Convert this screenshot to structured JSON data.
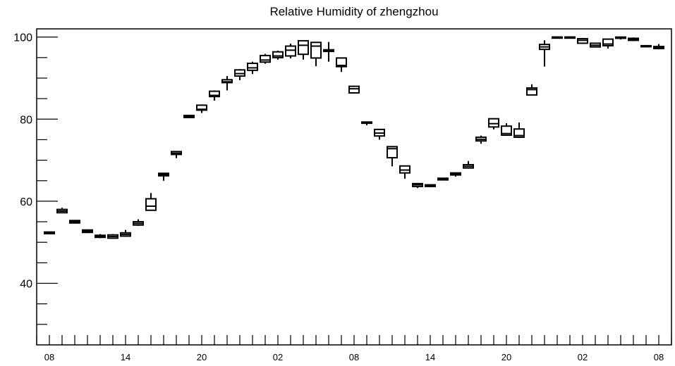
{
  "chart_data": {
    "type": "box",
    "title": "Relative Humidity of zhengzhou",
    "xlabel": "",
    "ylabel": "",
    "ylim": [
      25,
      102
    ],
    "yticks": [
      40,
      60,
      80,
      100
    ],
    "x_tick_labels": [
      "08",
      "14",
      "20",
      "02",
      "08",
      "14",
      "20",
      "02",
      "08"
    ],
    "x_tick_label_positions_hours": [
      0,
      6,
      12,
      18,
      24,
      30,
      36,
      42,
      48
    ],
    "x_range_hours": [
      -1,
      49
    ],
    "grid": false,
    "legend": "none",
    "boxes": [
      {
        "hour": 0,
        "q1": 52.1,
        "median": 52.3,
        "q3": 52.5,
        "wlo": 52.1,
        "whi": 52.5
      },
      {
        "hour": 1,
        "q1": 57.2,
        "median": 57.6,
        "q3": 58.0,
        "wlo": 57.1,
        "whi": 58.4
      },
      {
        "hour": 2,
        "q1": 54.7,
        "median": 55.0,
        "q3": 55.3,
        "wlo": 54.7,
        "whi": 55.3
      },
      {
        "hour": 3,
        "q1": 52.4,
        "median": 52.7,
        "q3": 53.0,
        "wlo": 52.4,
        "whi": 53.1
      },
      {
        "hour": 4,
        "q1": 51.2,
        "median": 51.5,
        "q3": 51.7,
        "wlo": 51.0,
        "whi": 52.0
      },
      {
        "hour": 5,
        "q1": 51.0,
        "median": 51.4,
        "q3": 51.8,
        "wlo": 50.9,
        "whi": 52.0
      },
      {
        "hour": 6,
        "q1": 51.5,
        "median": 51.9,
        "q3": 52.3,
        "wlo": 51.4,
        "whi": 53.0
      },
      {
        "hour": 7,
        "q1": 54.2,
        "median": 54.6,
        "q3": 55.0,
        "wlo": 54.0,
        "whi": 55.6
      },
      {
        "hour": 8,
        "q1": 57.8,
        "median": 58.8,
        "q3": 60.6,
        "wlo": 57.8,
        "whi": 62.0
      },
      {
        "hour": 9,
        "q1": 66.2,
        "median": 66.5,
        "q3": 66.8,
        "wlo": 65.0,
        "whi": 66.8
      },
      {
        "hour": 10,
        "q1": 71.4,
        "median": 71.7,
        "q3": 72.1,
        "wlo": 70.5,
        "whi": 72.2
      },
      {
        "hour": 11,
        "q1": 80.4,
        "median": 80.6,
        "q3": 80.9,
        "wlo": 80.4,
        "whi": 80.9
      },
      {
        "hour": 12,
        "q1": 82.2,
        "median": 82.4,
        "q3": 83.4,
        "wlo": 81.5,
        "whi": 83.6
      },
      {
        "hour": 13,
        "q1": 85.5,
        "median": 85.8,
        "q3": 86.8,
        "wlo": 84.5,
        "whi": 87.0
      },
      {
        "hour": 14,
        "q1": 88.9,
        "median": 89.1,
        "q3": 89.6,
        "wlo": 87.0,
        "whi": 90.5
      },
      {
        "hour": 15,
        "q1": 90.5,
        "median": 91.1,
        "q3": 92.0,
        "wlo": 89.5,
        "whi": 92.2
      },
      {
        "hour": 16,
        "q1": 91.9,
        "median": 92.5,
        "q3": 93.6,
        "wlo": 91.0,
        "whi": 94.0
      },
      {
        "hour": 17,
        "q1": 93.9,
        "median": 94.4,
        "q3": 95.5,
        "wlo": 93.5,
        "whi": 95.9
      },
      {
        "hour": 18,
        "q1": 95.0,
        "median": 95.4,
        "q3": 96.4,
        "wlo": 94.5,
        "whi": 96.7
      },
      {
        "hour": 19,
        "q1": 95.4,
        "median": 96.8,
        "q3": 97.8,
        "wlo": 94.8,
        "whi": 98.4
      },
      {
        "hour": 20,
        "q1": 95.8,
        "median": 98.0,
        "q3": 99.1,
        "wlo": 94.5,
        "whi": 99.2
      },
      {
        "hour": 21,
        "q1": 94.9,
        "median": 97.8,
        "q3": 98.7,
        "wlo": 92.9,
        "whi": 98.8
      },
      {
        "hour": 22,
        "q1": 96.5,
        "median": 96.7,
        "q3": 96.9,
        "wlo": 94.0,
        "whi": 98.8
      },
      {
        "hour": 23,
        "q1": 92.8,
        "median": 93.1,
        "q3": 94.9,
        "wlo": 91.5,
        "whi": 94.9
      },
      {
        "hour": 24,
        "q1": 86.4,
        "median": 87.4,
        "q3": 88.0,
        "wlo": 86.3,
        "whi": 88.2
      },
      {
        "hour": 25,
        "q1": 79.0,
        "median": 79.1,
        "q3": 79.3,
        "wlo": 78.5,
        "whi": 79.3
      },
      {
        "hour": 26,
        "q1": 75.9,
        "median": 76.6,
        "q3": 77.5,
        "wlo": 75.0,
        "whi": 77.6
      },
      {
        "hour": 27,
        "q1": 70.6,
        "median": 72.8,
        "q3": 73.3,
        "wlo": 68.5,
        "whi": 73.4
      },
      {
        "hour": 28,
        "q1": 66.9,
        "median": 67.6,
        "q3": 68.6,
        "wlo": 65.5,
        "whi": 68.7
      },
      {
        "hour": 29,
        "q1": 63.6,
        "median": 64.0,
        "q3": 64.3,
        "wlo": 63.2,
        "whi": 64.4
      },
      {
        "hour": 30,
        "q1": 63.6,
        "median": 63.8,
        "q3": 64.0,
        "wlo": 63.4,
        "whi": 64.0
      },
      {
        "hour": 31,
        "q1": 65.2,
        "median": 65.4,
        "q3": 65.6,
        "wlo": 65.2,
        "whi": 65.6
      },
      {
        "hour": 32,
        "q1": 66.4,
        "median": 66.6,
        "q3": 66.9,
        "wlo": 66.0,
        "whi": 66.9
      },
      {
        "hour": 33,
        "q1": 68.1,
        "median": 68.5,
        "q3": 68.9,
        "wlo": 68.0,
        "whi": 69.8
      },
      {
        "hour": 34,
        "q1": 74.7,
        "median": 75.1,
        "q3": 75.6,
        "wlo": 74.0,
        "whi": 76.0
      },
      {
        "hour": 35,
        "q1": 78.1,
        "median": 78.9,
        "q3": 80.1,
        "wlo": 77.5,
        "whi": 80.2
      },
      {
        "hour": 36,
        "q1": 76.1,
        "median": 76.5,
        "q3": 78.3,
        "wlo": 76.0,
        "whi": 79.0
      },
      {
        "hour": 37,
        "q1": 75.6,
        "median": 76.0,
        "q3": 77.6,
        "wlo": 75.4,
        "whi": 79.2
      },
      {
        "hour": 38,
        "q1": 85.9,
        "median": 87.2,
        "q3": 87.6,
        "wlo": 85.8,
        "whi": 88.5
      },
      {
        "hour": 39,
        "q1": 97.0,
        "median": 97.6,
        "q3": 98.2,
        "wlo": 92.8,
        "whi": 99.2
      },
      {
        "hour": 40,
        "q1": 99.9,
        "median": 100.0,
        "q3": 100.0,
        "wlo": 99.9,
        "whi": 100.0
      },
      {
        "hour": 41,
        "q1": 99.9,
        "median": 100.0,
        "q3": 100.0,
        "wlo": 99.8,
        "whi": 100.0
      },
      {
        "hour": 42,
        "q1": 98.5,
        "median": 99.2,
        "q3": 99.6,
        "wlo": 98.3,
        "whi": 99.8
      },
      {
        "hour": 43,
        "q1": 97.6,
        "median": 98.0,
        "q3": 98.5,
        "wlo": 97.5,
        "whi": 98.5
      },
      {
        "hour": 44,
        "q1": 97.9,
        "median": 98.3,
        "q3": 99.5,
        "wlo": 97.2,
        "whi": 99.6
      },
      {
        "hour": 45,
        "q1": 99.7,
        "median": 99.9,
        "q3": 100.0,
        "wlo": 99.4,
        "whi": 100.0
      },
      {
        "hour": 46,
        "q1": 99.2,
        "median": 99.5,
        "q3": 99.7,
        "wlo": 99.0,
        "whi": 99.9
      },
      {
        "hour": 47,
        "q1": 97.7,
        "median": 97.8,
        "q3": 97.9,
        "wlo": 97.7,
        "whi": 98.0
      },
      {
        "hour": 48,
        "q1": 97.2,
        "median": 97.5,
        "q3": 97.7,
        "wlo": 97.0,
        "whi": 98.3
      }
    ]
  },
  "colors": {
    "axis": "#000000",
    "box_stroke": "#000000",
    "background": "#ffffff"
  }
}
